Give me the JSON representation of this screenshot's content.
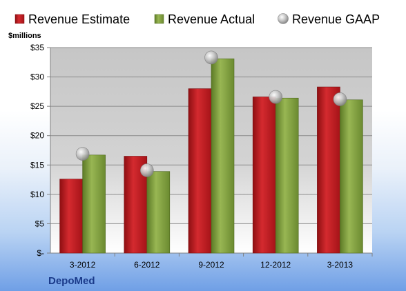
{
  "chart_data": {
    "type": "bar",
    "company": "DepoMed",
    "units_label": "$millions",
    "categories": [
      "3-2012",
      "6-2012",
      "9-2012",
      "12-2012",
      "3-2013"
    ],
    "series": [
      {
        "name": "Revenue Estimate",
        "type": "bar",
        "color": "#c0161c",
        "values": [
          12.6,
          16.5,
          28.0,
          26.6,
          28.3
        ]
      },
      {
        "name": "Revenue Actual",
        "type": "bar",
        "color": "#7a9a3a",
        "values": [
          16.7,
          13.9,
          33.1,
          26.4,
          26.1
        ]
      },
      {
        "name": "Revenue GAAP",
        "type": "marker",
        "color": "#b8b8b8",
        "values": [
          16.9,
          14.1,
          33.3,
          26.6,
          26.2
        ]
      }
    ],
    "ylim": [
      0,
      35
    ],
    "yticks": [
      {
        "value": 0,
        "label": "$-"
      },
      {
        "value": 5,
        "label": "$5"
      },
      {
        "value": 10,
        "label": "$10"
      },
      {
        "value": 15,
        "label": "$15"
      },
      {
        "value": 20,
        "label": "$20"
      },
      {
        "value": 25,
        "label": "$25"
      },
      {
        "value": 30,
        "label": "$30"
      },
      {
        "value": 35,
        "label": "$35"
      }
    ],
    "grid": true,
    "legend_position": "top"
  }
}
